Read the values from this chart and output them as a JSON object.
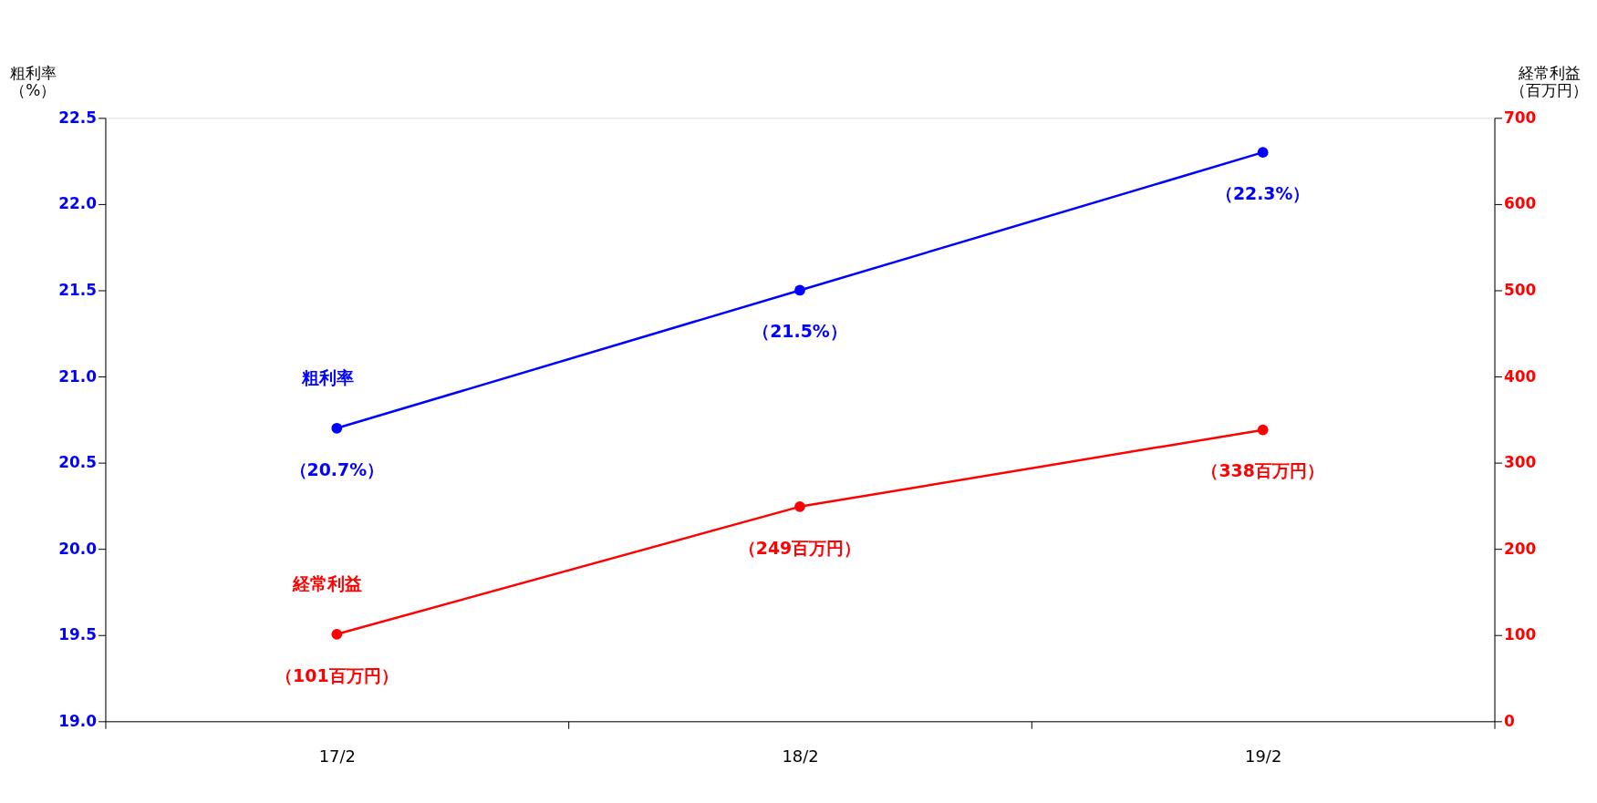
{
  "chart_data": {
    "type": "line",
    "categories": [
      "17/2",
      "18/2",
      "19/2"
    ],
    "ylabel": "粗利率（%）",
    "y2label": "経常利益（百万円）",
    "ylim": [
      19.0,
      22.5
    ],
    "yticks": [
      {
        "value": 19,
        "label": "19.0"
      },
      19.5,
      {
        "value": 20,
        "label": "20.0"
      },
      20.5,
      {
        "value": 21,
        "label": "21.0"
      },
      21.5,
      {
        "value": 22,
        "label": "22.0"
      },
      22.5
    ],
    "y2lim": [
      0,
      700
    ],
    "y2ticks": [
      0,
      100,
      200,
      300,
      400,
      500,
      600,
      700
    ],
    "marker": "circle",
    "series": [
      {
        "name": "粗利率",
        "color": "#0000ff",
        "values": [
          20.7,
          21.5,
          22.3
        ],
        "value_labels": [
          "（20.7%）",
          "（21.5%）",
          "（22.3%）"
        ]
      },
      {
        "name": "経常利益",
        "color": "#ff0000",
        "axis": "y2",
        "values": [
          101,
          249,
          338
        ],
        "value_labels": [
          "（101百万円）",
          "（249百万円）",
          "（338百万円）"
        ]
      }
    ]
  }
}
